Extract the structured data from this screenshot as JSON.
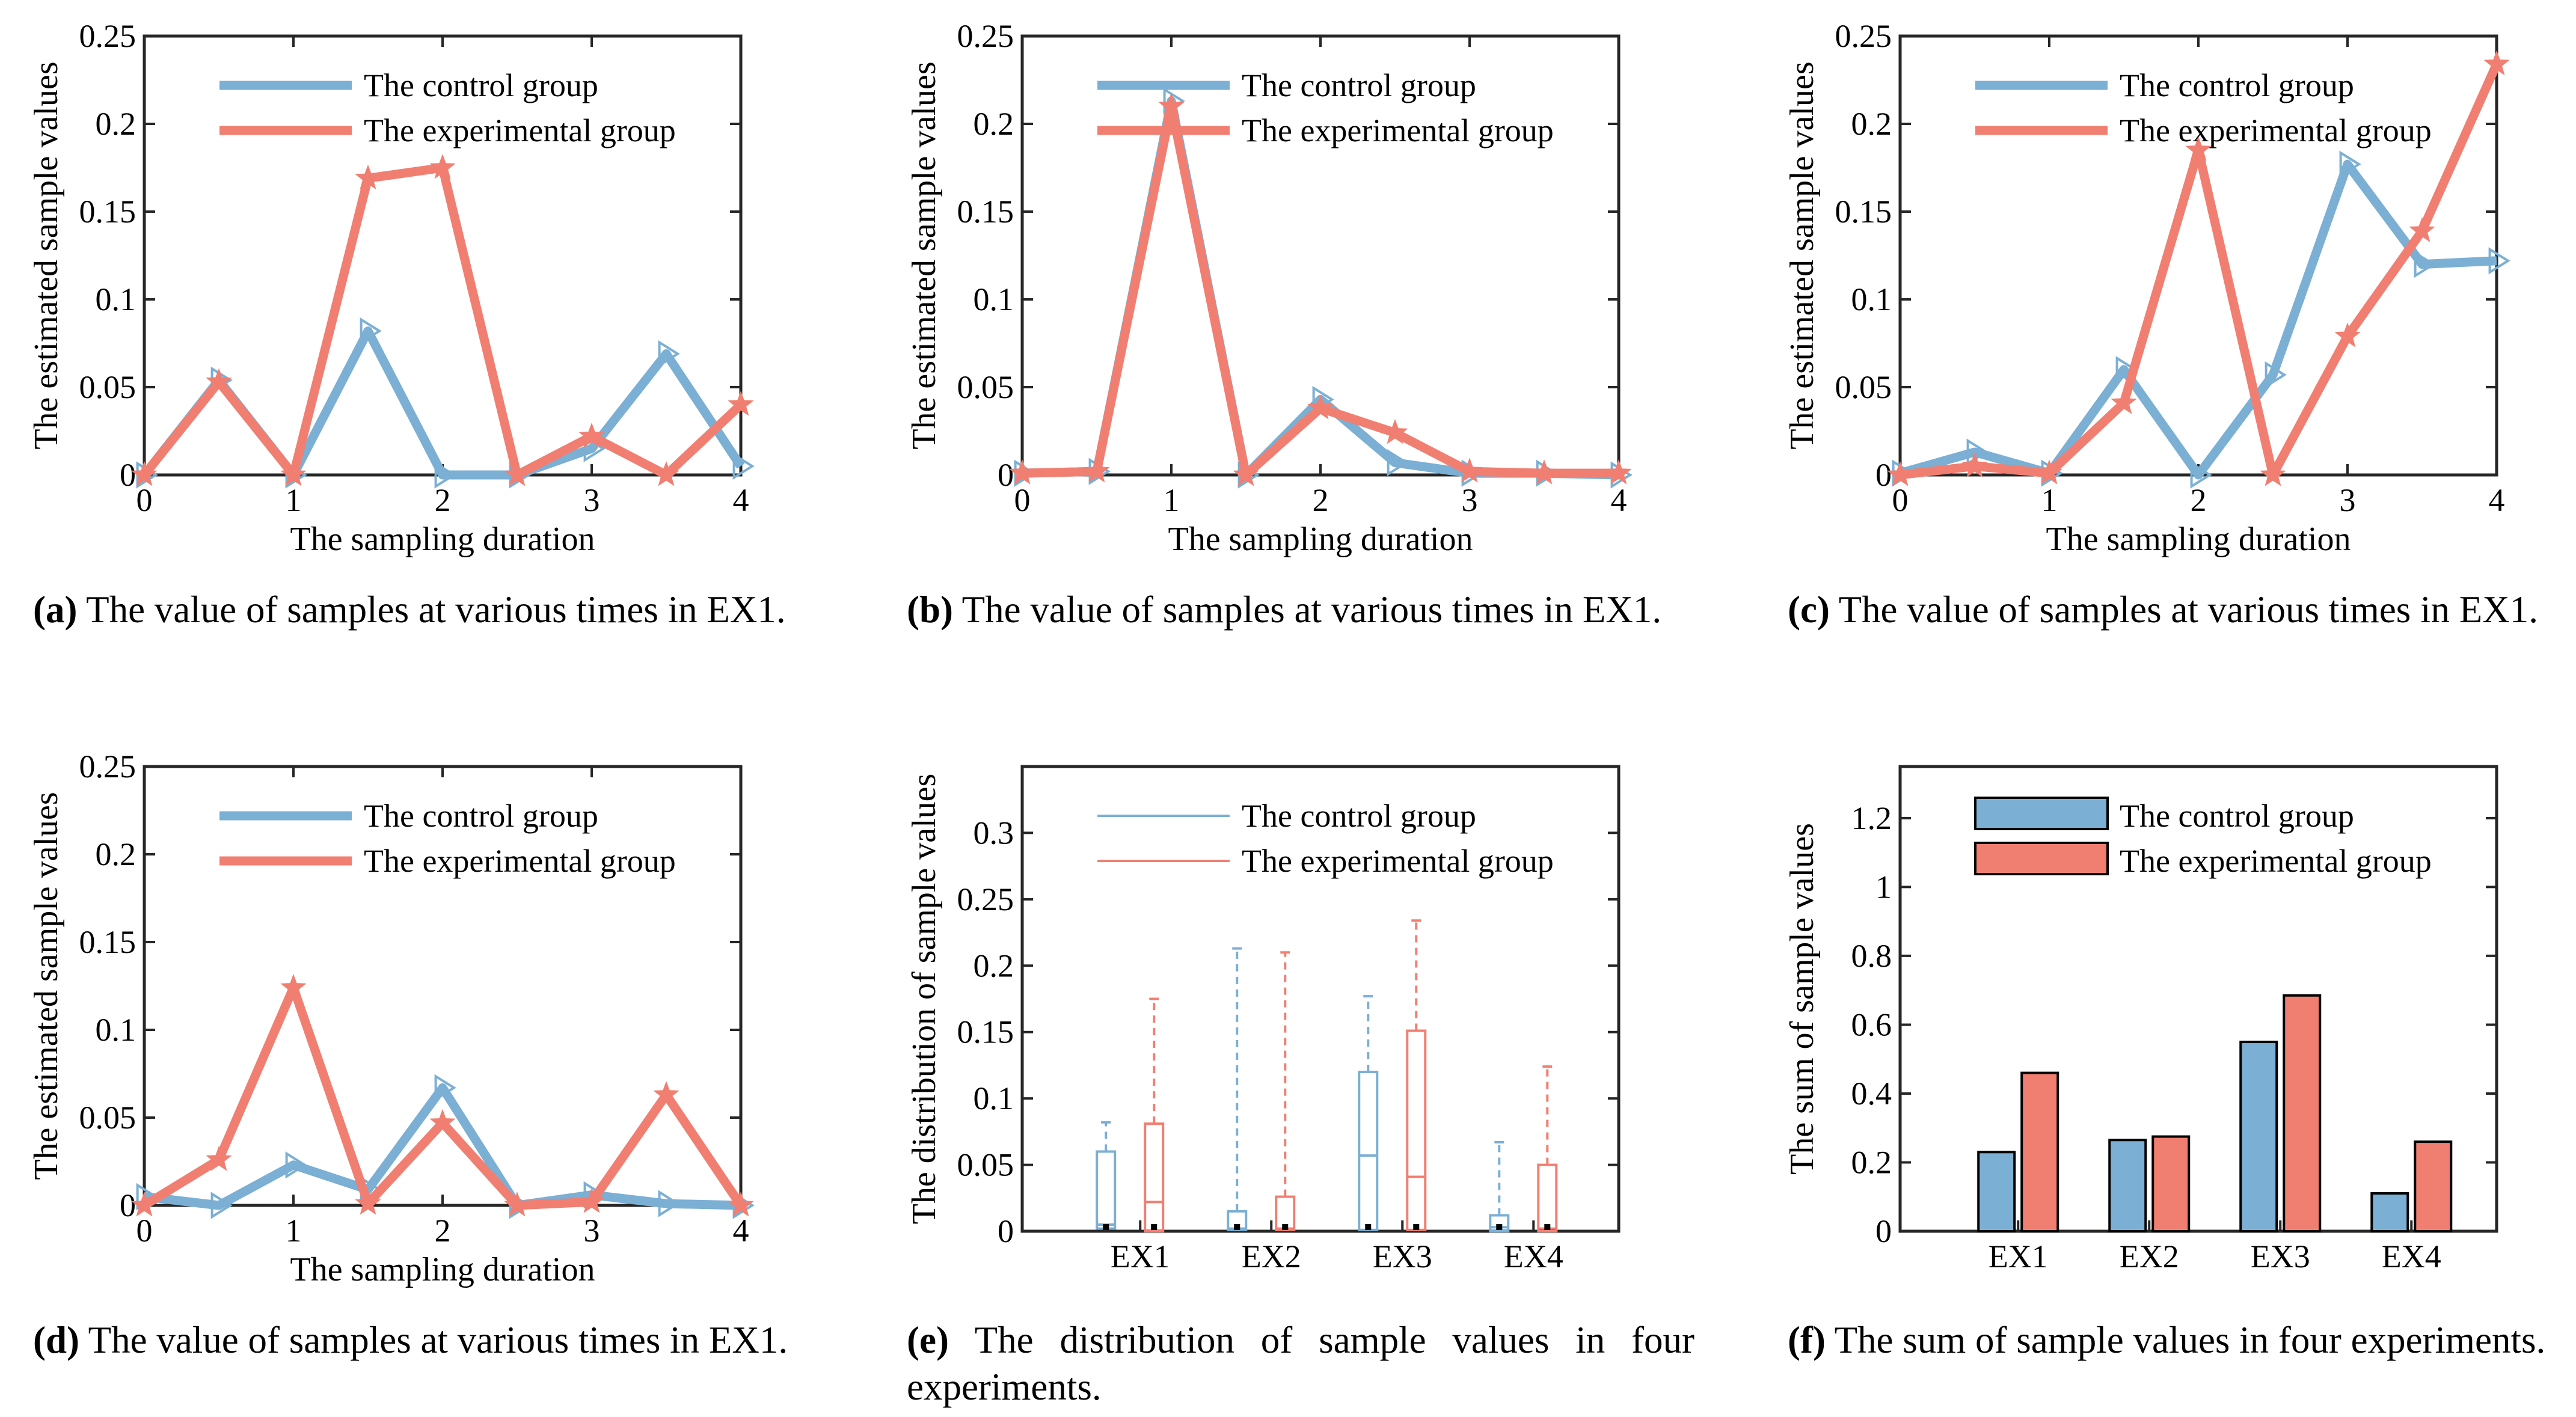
{
  "colors": {
    "control": "#7BAFD4",
    "experimental": "#F07F72",
    "axis": "#262626"
  },
  "line_panels": [
    {
      "id": "a",
      "caption_letter": "a",
      "caption_text": "The value of samples at various times in EX1.",
      "chart_data": {
        "type": "line",
        "xlabel": "The sampling duration",
        "ylabel": "The estimated sample values",
        "xlim": [
          0,
          4
        ],
        "ylim": [
          0,
          0.25
        ],
        "xticks": [
          "0",
          "1",
          "2",
          "3",
          "4"
        ],
        "yticks": [
          "0",
          "0.05",
          "0.1",
          "0.15",
          "0.2",
          "0.25"
        ],
        "x": [
          0,
          0.5,
          1,
          1.5,
          2,
          2.5,
          3,
          3.5,
          4
        ],
        "series": [
          {
            "name": "The control group",
            "marker": "triangle-right",
            "values": [
              0,
              0.054,
              0,
              0.082,
              0,
              0,
              0.015,
              0.069,
              0.005
            ]
          },
          {
            "name": "The experimental group",
            "marker": "star",
            "values": [
              0,
              0.053,
              0,
              0.169,
              0.175,
              0,
              0.022,
              0,
              0.04
            ]
          }
        ]
      }
    },
    {
      "id": "b",
      "caption_letter": "b",
      "caption_text": "The value of samples at various times in EX1.",
      "chart_data": {
        "type": "line",
        "xlabel": "The sampling duration",
        "ylabel": "The estimated sample values",
        "xlim": [
          0,
          4
        ],
        "ylim": [
          0,
          0.25
        ],
        "xticks": [
          "0",
          "1",
          "2",
          "3",
          "4"
        ],
        "yticks": [
          "0",
          "0.05",
          "0.1",
          "0.15",
          "0.2",
          "0.25"
        ],
        "x": [
          0,
          0.5,
          1,
          1.5,
          2,
          2.5,
          3,
          3.5,
          4
        ],
        "series": [
          {
            "name": "The control group",
            "marker": "triangle-right",
            "values": [
              0.001,
              0.002,
              0.213,
              0,
              0.043,
              0.007,
              0.001,
              0.001,
              0
            ]
          },
          {
            "name": "The experimental group",
            "marker": "star",
            "values": [
              0.001,
              0.002,
              0.21,
              0,
              0.038,
              0.024,
              0.002,
              0.001,
              0.001
            ]
          }
        ]
      }
    },
    {
      "id": "c",
      "caption_letter": "c",
      "caption_text": "The value of samples at various times in EX1.",
      "chart_data": {
        "type": "line",
        "xlabel": "The sampling duration",
        "ylabel": "The estimated sample values",
        "xlim": [
          0,
          4
        ],
        "ylim": [
          0,
          0.25
        ],
        "xticks": [
          "0",
          "1",
          "2",
          "3",
          "4"
        ],
        "yticks": [
          "0",
          "0.05",
          "0.1",
          "0.15",
          "0.2",
          "0.25"
        ],
        "x": [
          0,
          0.5,
          1,
          1.5,
          2,
          2.5,
          3,
          3.5,
          4
        ],
        "series": [
          {
            "name": "The control group",
            "marker": "triangle-right",
            "values": [
              0.001,
              0.013,
              0.001,
              0.06,
              0,
              0.057,
              0.177,
              0.12,
              0.122
            ]
          },
          {
            "name": "The experimental group",
            "marker": "star",
            "values": [
              0,
              0.005,
              0.001,
              0.041,
              0.185,
              0,
              0.079,
              0.139,
              0.234
            ]
          }
        ]
      }
    },
    {
      "id": "d",
      "caption_letter": "d",
      "caption_text": "The value of samples at various times in EX1.",
      "chart_data": {
        "type": "line",
        "xlabel": "The sampling duration",
        "ylabel": "The estimated sample values",
        "xlim": [
          0,
          4
        ],
        "ylim": [
          0,
          0.25
        ],
        "xticks": [
          "0",
          "1",
          "2",
          "3",
          "4"
        ],
        "yticks": [
          "0",
          "0.05",
          "0.1",
          "0.15",
          "0.2",
          "0.25"
        ],
        "x": [
          0,
          0.5,
          1,
          1.5,
          2,
          2.5,
          3,
          3.5,
          4
        ],
        "series": [
          {
            "name": "The control group",
            "marker": "triangle-right",
            "values": [
              0.005,
              0,
              0.023,
              0.009,
              0.067,
              0,
              0.006,
              0.001,
              0
            ]
          },
          {
            "name": "The experimental group",
            "marker": "star",
            "values": [
              0,
              0.026,
              0.124,
              0.001,
              0.047,
              0,
              0.002,
              0.063,
              0
            ]
          }
        ]
      }
    }
  ],
  "box_panel": {
    "id": "e",
    "caption_letter": "e",
    "caption_text": "The distribution of sample values in four experiments.",
    "chart_data": {
      "type": "box",
      "ylabel": "The distribution of sample values",
      "ylim": [
        0,
        0.35
      ],
      "categories": [
        "EX1",
        "EX2",
        "EX3",
        "EX4"
      ],
      "yticks": [
        "0",
        "0.05",
        "0.1",
        "0.15",
        "0.2",
        "0.25",
        "0.3"
      ],
      "series": [
        {
          "name": "The control group",
          "boxes": [
            {
              "min": 0,
              "q1": 0.002,
              "median": 0.005,
              "q3": 0.06,
              "max": 0.082
            },
            {
              "min": 0,
              "q1": 0.001,
              "median": 0.002,
              "q3": 0.015,
              "max": 0.213
            },
            {
              "min": 0,
              "q1": 0.001,
              "median": 0.057,
              "q3": 0.12,
              "max": 0.177
            },
            {
              "min": 0,
              "q1": 0,
              "median": 0.003,
              "q3": 0.012,
              "max": 0.067
            }
          ]
        },
        {
          "name": "The experimental group",
          "boxes": [
            {
              "min": 0,
              "q1": 0,
              "median": 0.022,
              "q3": 0.081,
              "max": 0.175
            },
            {
              "min": 0,
              "q1": 0.001,
              "median": 0.002,
              "q3": 0.026,
              "max": 0.21
            },
            {
              "min": 0,
              "q1": 0.001,
              "median": 0.041,
              "q3": 0.151,
              "max": 0.234
            },
            {
              "min": 0,
              "q1": 0,
              "median": 0.002,
              "q3": 0.05,
              "max": 0.124
            }
          ]
        }
      ]
    }
  },
  "bar_panel": {
    "id": "f",
    "caption_letter": "f",
    "caption_text": "The sum of sample values in four experiments.",
    "chart_data": {
      "type": "bar",
      "ylabel": "The sum of sample values",
      "ylim": [
        0,
        1.35
      ],
      "categories": [
        "EX1",
        "EX2",
        "EX3",
        "EX4"
      ],
      "yticks": [
        "0",
        "0.2",
        "0.4",
        "0.6",
        "0.8",
        "1",
        "1.2"
      ],
      "series": [
        {
          "name": "The control group",
          "values": [
            0.23,
            0.265,
            0.55,
            0.11
          ]
        },
        {
          "name": "The experimental group",
          "values": [
            0.46,
            0.275,
            0.685,
            0.26
          ]
        }
      ]
    }
  }
}
